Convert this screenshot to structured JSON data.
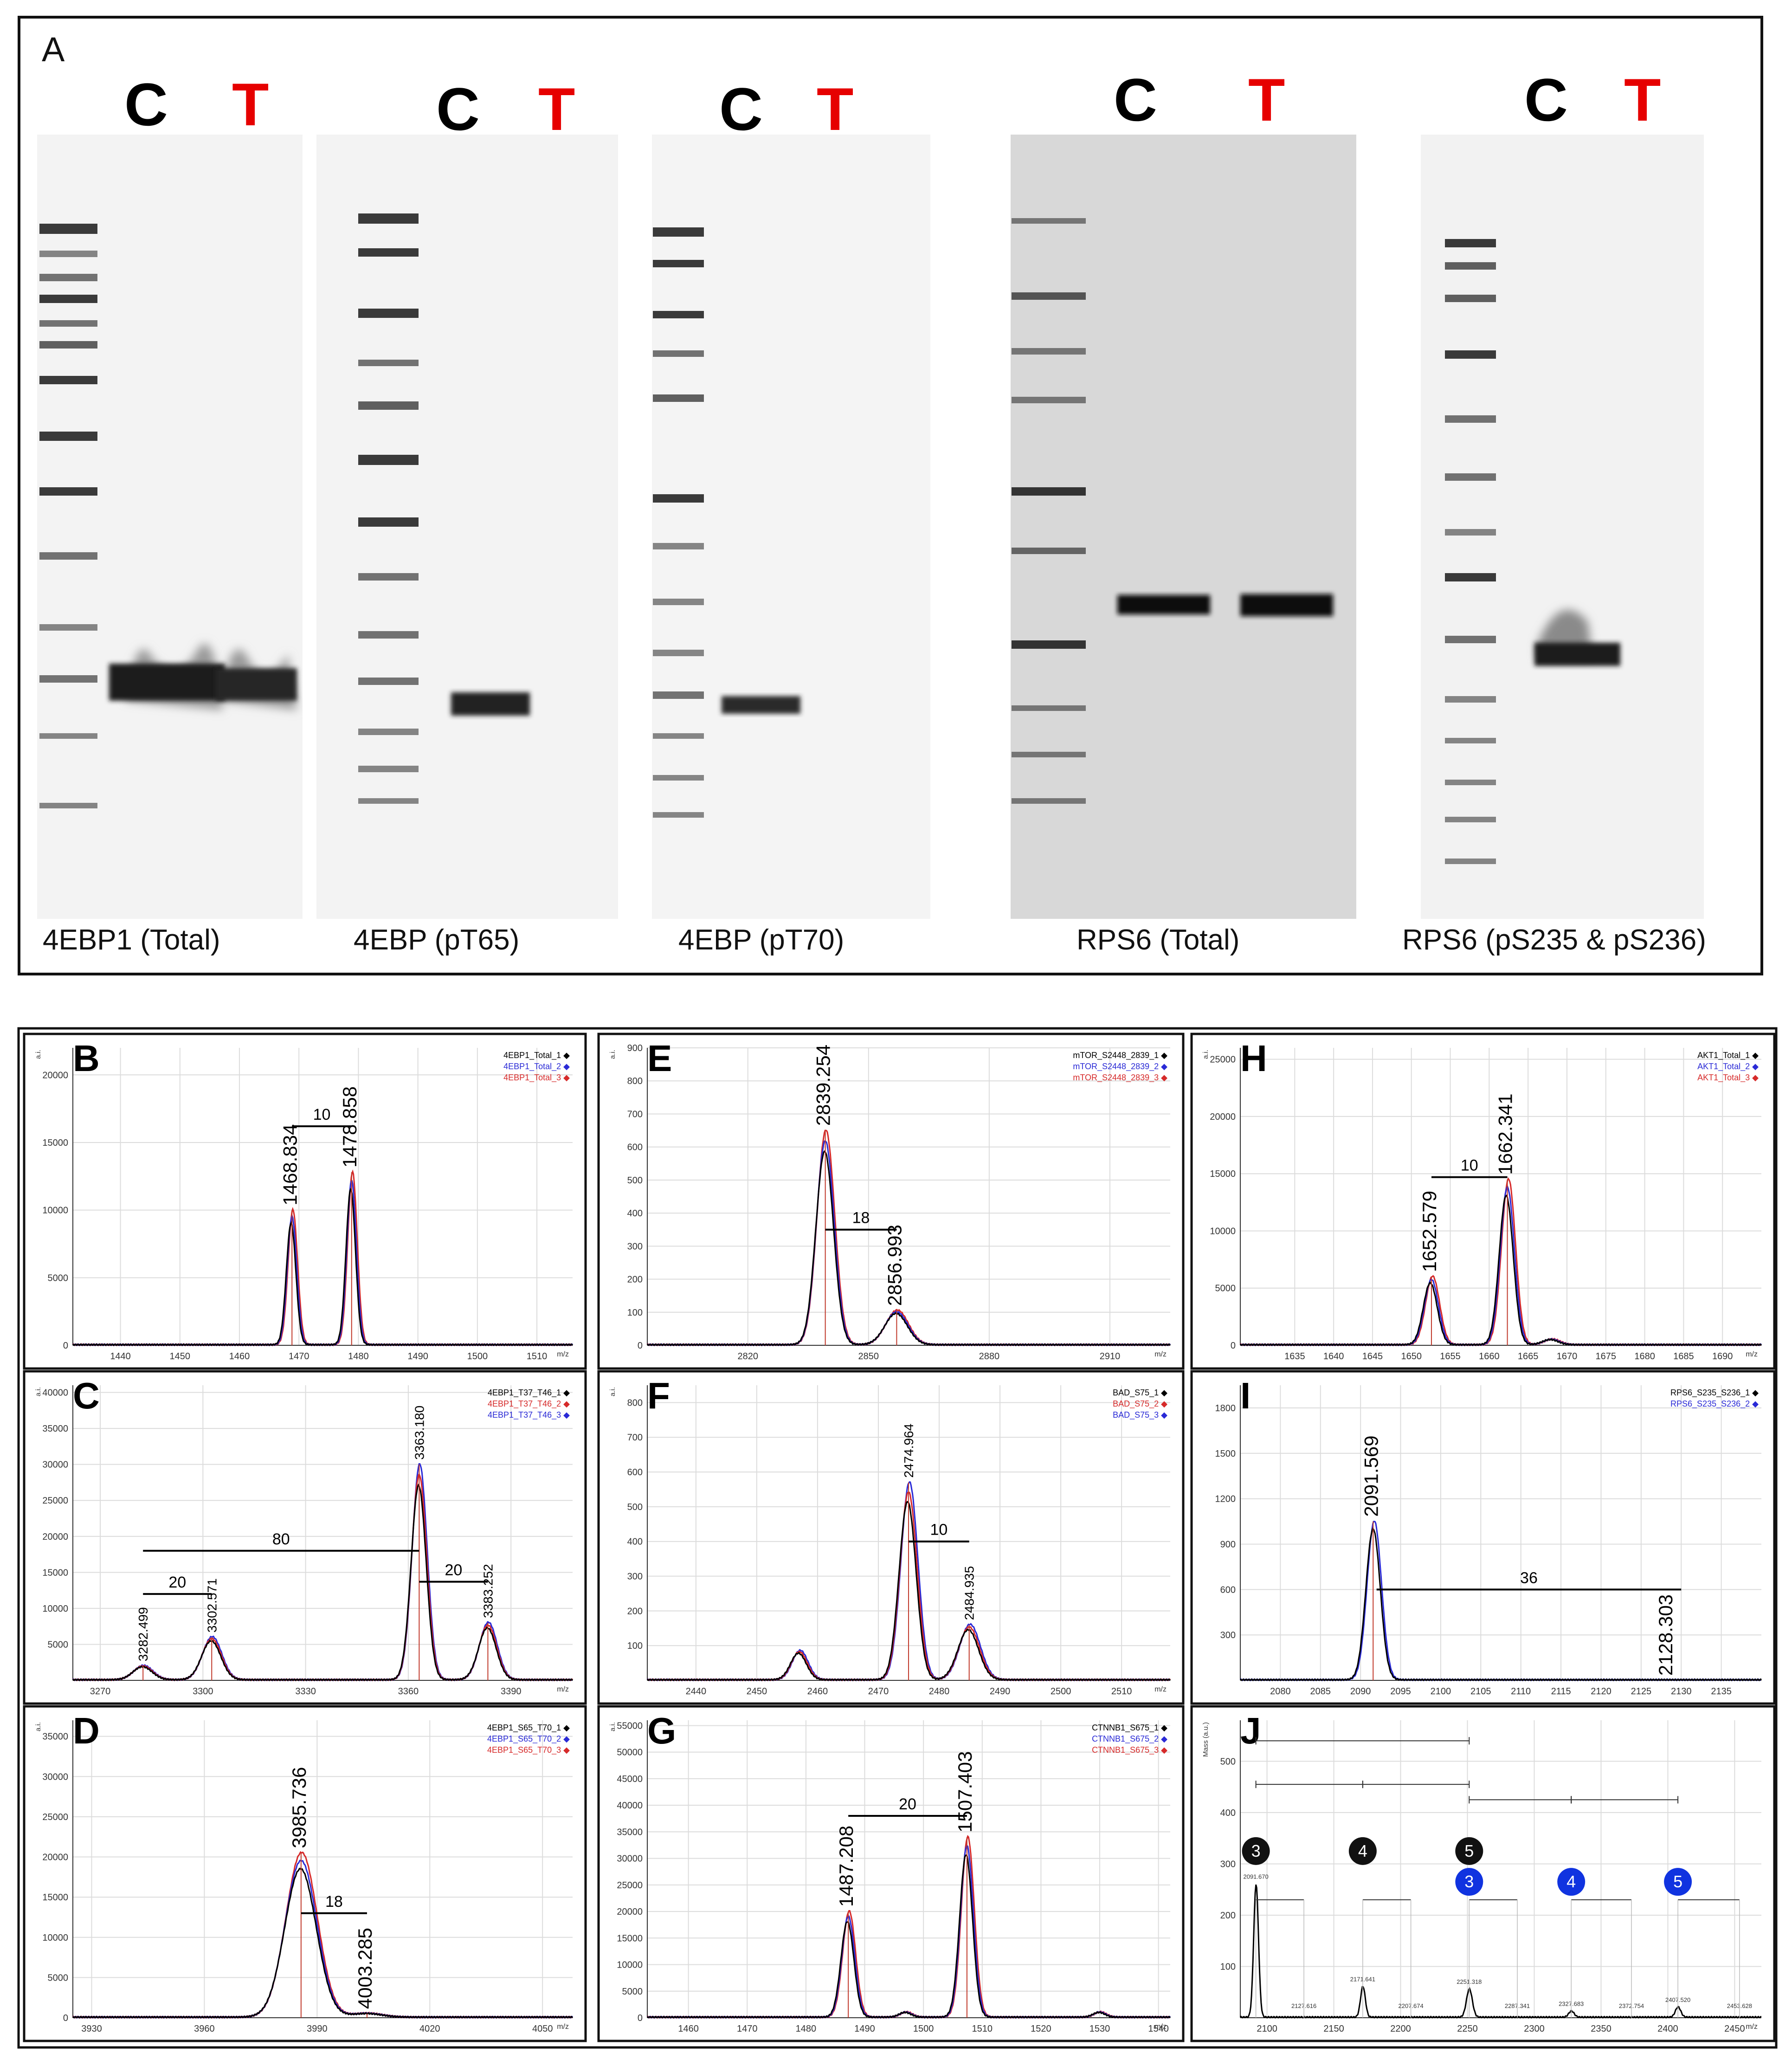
{
  "panel_a": {
    "letter": "A",
    "lane_c": "C",
    "lane_t": "T",
    "blots": [
      {
        "label": "4EBP1 (Total)"
      },
      {
        "label": "4EBP (pT65)"
      },
      {
        "label": "4EBP (pT70)"
      },
      {
        "label": "RPS6 (Total)"
      },
      {
        "label": "RPS6 (pS235 & pS236)"
      }
    ]
  },
  "chart_data": [
    {
      "panel": "B",
      "type": "line",
      "ylabel": "a.i.",
      "xlabel": "m/z",
      "xlim": [
        1432,
        1516
      ],
      "ylim": [
        0,
        22000
      ],
      "xticks": [
        1440,
        1450,
        1460,
        1470,
        1480,
        1490,
        1500,
        1510
      ],
      "yticks": [
        0,
        5000,
        10000,
        15000,
        20000
      ],
      "legend": [
        "4EBP1_Total_1",
        "4EBP1_Total_2",
        "4EBP1_Total_3"
      ],
      "legend_colors": [
        "#000000",
        "#2a2ad6",
        "#d62a2a"
      ],
      "peaks": [
        {
          "x": 1468.834,
          "y": 10000,
          "w": 0.8
        },
        {
          "x": 1478.858,
          "y": 12800,
          "w": 0.8
        }
      ],
      "peak_labels": [
        {
          "x": 1468.834,
          "text": "1468.834"
        },
        {
          "x": 1478.858,
          "text": "1478.858"
        }
      ],
      "brackets": [
        {
          "x1": 1468.834,
          "x2": 1478.858,
          "y": 16200,
          "text": "10"
        }
      ]
    },
    {
      "panel": "C",
      "type": "line",
      "ylabel": "a.i.",
      "xlabel": "m/z",
      "xlim": [
        3262,
        3408
      ],
      "ylim": [
        0,
        41000
      ],
      "xticks": [
        3270,
        3300,
        3330,
        3360,
        3390
      ],
      "yticks": [
        5000,
        10000,
        15000,
        20000,
        25000,
        30000,
        35000,
        40000
      ],
      "legend": [
        "4EBP1_T37_T46_1",
        "4EBP1_T37_T46_2",
        "4EBP1_T37_T46_3"
      ],
      "legend_colors": [
        "#000000",
        "#d62a2a",
        "#2a2ad6"
      ],
      "peaks": [
        {
          "x": 3282.499,
          "y": 2000,
          "w": 2.8
        },
        {
          "x": 3302.571,
          "y": 6000,
          "w": 2.8
        },
        {
          "x": 3363.18,
          "y": 30000,
          "w": 2.2
        },
        {
          "x": 3383.252,
          "y": 8000,
          "w": 2.6
        }
      ],
      "peak_labels": [
        {
          "x": 3282.499,
          "text": "3282.499"
        },
        {
          "x": 3302.571,
          "text": "3302.571"
        },
        {
          "x": 3363.18,
          "text": "3363.180"
        },
        {
          "x": 3383.252,
          "text": "3383.252"
        }
      ],
      "brackets": [
        {
          "x1": 3282.499,
          "x2": 3302.571,
          "y": 12000,
          "text": "20"
        },
        {
          "x1": 3282.499,
          "x2": 3363.18,
          "y": 18000,
          "text": "80"
        },
        {
          "x1": 3363.18,
          "x2": 3383.252,
          "y": 13700,
          "text": "20"
        }
      ]
    },
    {
      "panel": "D",
      "type": "line",
      "ylabel": "a.i.",
      "xlabel": "m/z",
      "xlim": [
        3925,
        4058
      ],
      "ylim": [
        0,
        37000
      ],
      "xticks": [
        3930,
        3960,
        3990,
        4020,
        4050
      ],
      "yticks": [
        0,
        5000,
        10000,
        15000,
        20000,
        25000,
        30000,
        35000
      ],
      "legend": [
        "4EBP1_S65_T70_1",
        "4EBP1_S65_T70_2",
        "4EBP1_S65_T70_3"
      ],
      "legend_colors": [
        "#000000",
        "#2a2ad6",
        "#d62a2a"
      ],
      "peaks": [
        {
          "x": 3985.736,
          "y": 20500,
          "w": 4.2
        },
        {
          "x": 4003.285,
          "y": 500,
          "w": 4
        }
      ],
      "peak_labels": [
        {
          "x": 3985.736,
          "text": "3985.736"
        },
        {
          "x": 4003.285,
          "text": "4003.285"
        }
      ],
      "brackets": [
        {
          "x1": 3985.736,
          "x2": 4003.285,
          "y": 13000,
          "text": "18"
        }
      ]
    },
    {
      "panel": "E",
      "type": "line",
      "ylabel": "a.i.",
      "xlabel": "m/z",
      "xlim": [
        2795,
        2925
      ],
      "ylim": [
        0,
        900
      ],
      "xticks": [
        2820,
        2850,
        2880,
        2910
      ],
      "yticks": [
        0,
        100,
        200,
        300,
        400,
        500,
        600,
        700,
        800,
        900
      ],
      "legend": [
        "mTOR_S2448_2839_1",
        "mTOR_S2448_2839_2",
        "mTOR_S2448_2839_3"
      ],
      "legend_colors": [
        "#000000",
        "#2a2ad6",
        "#d62a2a"
      ],
      "peaks": [
        {
          "x": 2839.254,
          "y": 650,
          "w": 2.2
        },
        {
          "x": 2856.993,
          "y": 105,
          "w": 2.8
        }
      ],
      "peak_labels": [
        {
          "x": 2839.254,
          "text": "2839.254"
        },
        {
          "x": 2856.993,
          "text": "2856.993"
        }
      ],
      "brackets": [
        {
          "x1": 2839.254,
          "x2": 2856.993,
          "y": 350,
          "text": "18"
        }
      ]
    },
    {
      "panel": "F",
      "type": "line",
      "ylabel": "a.i.",
      "xlabel": "m/z",
      "xlim": [
        2432,
        2518
      ],
      "ylim": [
        0,
        850
      ],
      "xticks": [
        2440,
        2450,
        2460,
        2470,
        2480,
        2490,
        2500,
        2510
      ],
      "yticks": [
        100,
        200,
        300,
        400,
        500,
        600,
        700,
        800
      ],
      "legend": [
        "BAD_S75_1",
        "BAD_S75_2",
        "BAD_S75_3"
      ],
      "legend_colors": [
        "#000000",
        "#d62a2a",
        "#2a2ad6"
      ],
      "peaks": [
        {
          "x": 2457,
          "y": 85,
          "w": 1.3
        },
        {
          "x": 2474.964,
          "y": 570,
          "w": 1.4
        },
        {
          "x": 2484.935,
          "y": 160,
          "w": 1.7
        }
      ],
      "peak_labels": [
        {
          "x": 2474.964,
          "text": "2474.964"
        },
        {
          "x": 2484.935,
          "text": "2484.935"
        }
      ],
      "brackets": [
        {
          "x1": 2474.964,
          "x2": 2484.935,
          "y": 400,
          "text": "10"
        }
      ]
    },
    {
      "panel": "G",
      "type": "line",
      "ylabel": "a.i.",
      "xlabel": "m/z",
      "xlim": [
        1453,
        1542
      ],
      "ylim": [
        0,
        56000
      ],
      "xticks": [
        1460,
        1470,
        1480,
        1490,
        1500,
        1510,
        1520,
        1530,
        1540
      ],
      "yticks": [
        0,
        5000,
        10000,
        15000,
        20000,
        25000,
        30000,
        35000,
        40000,
        45000,
        50000,
        55000
      ],
      "legend": [
        "CTNNB1_S675_1",
        "CTNNB1_S675_2",
        "CTNNB1_S675_3"
      ],
      "legend_colors": [
        "#000000",
        "#2a2ad6",
        "#d62a2a"
      ],
      "peaks": [
        {
          "x": 1487.208,
          "y": 20000,
          "w": 1.1
        },
        {
          "x": 1497,
          "y": 1000,
          "w": 1
        },
        {
          "x": 1507.403,
          "y": 34000,
          "w": 1.1
        },
        {
          "x": 1530,
          "y": 1000,
          "w": 1
        }
      ],
      "peak_labels": [
        {
          "x": 1487.208,
          "text": "1487.208"
        },
        {
          "x": 1507.403,
          "text": "1507.403"
        }
      ],
      "brackets": [
        {
          "x1": 1487.208,
          "x2": 1507.403,
          "y": 38000,
          "text": "20"
        }
      ]
    },
    {
      "panel": "H",
      "type": "line",
      "ylabel": "a.i.",
      "xlabel": "m/z",
      "xlim": [
        1628,
        1695
      ],
      "ylim": [
        0,
        26000
      ],
      "xticks": [
        1635,
        1640,
        1645,
        1650,
        1655,
        1660,
        1665,
        1670,
        1675,
        1680,
        1685,
        1690
      ],
      "yticks": [
        0,
        5000,
        10000,
        15000,
        20000,
        25000
      ],
      "legend": [
        "AKT1_Total_1",
        "AKT1_Total_2",
        "AKT1_Total_3"
      ],
      "legend_colors": [
        "#000000",
        "#2a2ad6",
        "#d62a2a"
      ],
      "peaks": [
        {
          "x": 1652.579,
          "y": 6000,
          "w": 0.9
        },
        {
          "x": 1662.341,
          "y": 14500,
          "w": 0.9
        },
        {
          "x": 1668,
          "y": 500,
          "w": 1
        }
      ],
      "peak_labels": [
        {
          "x": 1652.579,
          "text": "1652.579"
        },
        {
          "x": 1662.341,
          "text": "1662.341"
        }
      ],
      "brackets": [
        {
          "x1": 1652.579,
          "x2": 1662.341,
          "y": 14700,
          "text": "10"
        }
      ]
    },
    {
      "panel": "I",
      "type": "line",
      "ylabel": "",
      "xlabel": "",
      "xlim": [
        2075,
        2140
      ],
      "ylim": [
        0,
        1950
      ],
      "xticks": [
        2080,
        2085,
        2090,
        2095,
        2100,
        2105,
        2110,
        2115,
        2120,
        2125,
        2130,
        2135
      ],
      "yticks": [
        300,
        600,
        900,
        1200,
        1500,
        1800
      ],
      "legend": [
        "RPS6_S235_S236_1",
        "RPS6_S235_S236_2"
      ],
      "legend_colors": [
        "#000000",
        "#2a2ad6"
      ],
      "peaks": [
        {
          "x": 2091.569,
          "y": 1050,
          "w": 0.9
        }
      ],
      "peak_labels": [
        {
          "x": 2091.569,
          "text": "2091.569"
        },
        {
          "x": 2128.303,
          "text": "2128.303"
        }
      ],
      "brackets": [
        {
          "x1": 2092,
          "x2": 2130,
          "y": 600,
          "text": "36"
        }
      ]
    },
    {
      "panel": "J",
      "type": "line",
      "ylabel": "Mass (a.u.)",
      "xlabel": "m/z",
      "xlim": [
        2080,
        2470
      ],
      "ylim": [
        0,
        580
      ],
      "xticks": [
        2100,
        2150,
        2200,
        2250,
        2300,
        2350,
        2400,
        2450
      ],
      "yticks": [
        100,
        200,
        300,
        400,
        500
      ],
      "markers_black": [
        "3",
        "4",
        "5"
      ],
      "markers_blue": [
        "3",
        "4",
        "5"
      ],
      "peaks": [
        {
          "x": 2091.67,
          "y": 260,
          "w": 1.8
        },
        {
          "x": 2171.64,
          "y": 60,
          "w": 1.8
        },
        {
          "x": 2251.32,
          "y": 55,
          "w": 2.2
        },
        {
          "x": 2327.68,
          "y": 12,
          "w": 2
        },
        {
          "x": 2407.52,
          "y": 20,
          "w": 2
        }
      ],
      "peak_labels": [
        {
          "x": 2091.67,
          "text": "2091.670"
        },
        {
          "x": 2127.61,
          "text": "2127.616"
        },
        {
          "x": 2171.64,
          "text": "2171.641"
        },
        {
          "x": 2207.67,
          "text": "2207.674"
        },
        {
          "x": 2251.32,
          "text": "2251.318"
        },
        {
          "x": 2287.34,
          "text": "2287.341"
        },
        {
          "x": 2327.68,
          "text": "2327.683"
        },
        {
          "x": 2372.75,
          "text": "2372.754"
        },
        {
          "x": 2407.52,
          "text": "2407.520"
        },
        {
          "x": 2453.63,
          "text": "2453.628"
        }
      ]
    }
  ]
}
